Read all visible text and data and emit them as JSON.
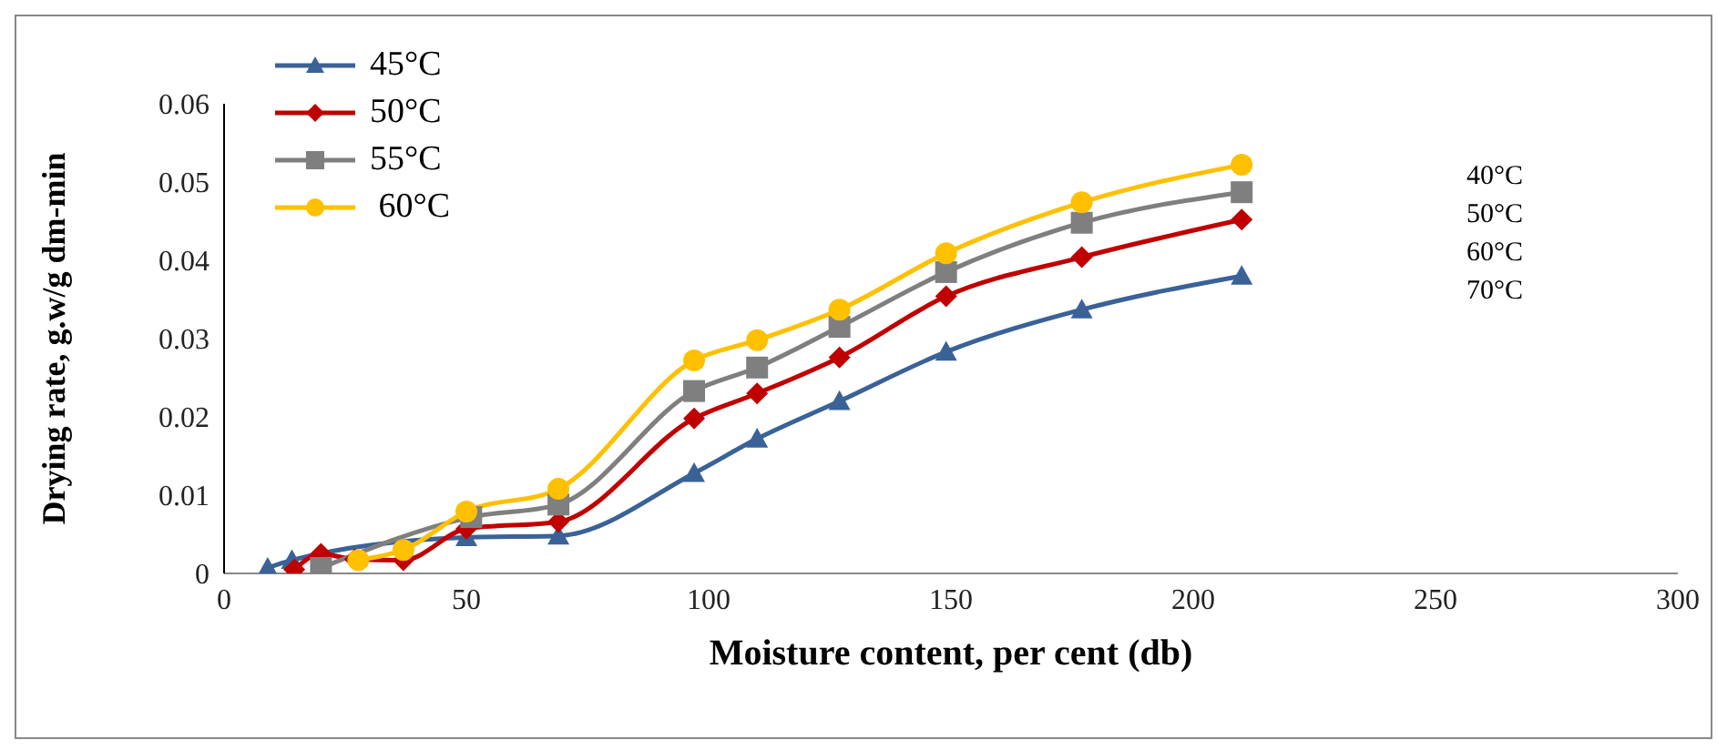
{
  "chart_data": {
    "type": "line",
    "xlabel": "Moisture content, per cent (db)",
    "ylabel": "Drying rate, g.w/g dm-min",
    "xlim": [
      0,
      300
    ],
    "xticks": [
      0,
      50,
      100,
      150,
      200,
      250,
      300
    ],
    "ylim": [
      0,
      0.06
    ],
    "yticks": [
      0,
      0.01,
      0.02,
      0.03,
      0.04,
      0.05,
      0.06
    ],
    "grid": false,
    "legend": "top left",
    "series": [
      {
        "name": "45°C",
        "color": "#3a6297",
        "marker": "triangle",
        "x": [
          9,
          14,
          50,
          69,
          97,
          110,
          127,
          149,
          177,
          210
        ],
        "values": [
          0.0007,
          0.0017,
          0.0046,
          0.0048,
          0.0128,
          0.0172,
          0.022,
          0.0283,
          0.0337,
          0.038
        ]
      },
      {
        "name": "50°C",
        "color": "#c00000",
        "marker": "diamond",
        "x": [
          14.5,
          20,
          27,
          37,
          50,
          69,
          97,
          110,
          127,
          149,
          177,
          210
        ],
        "values": [
          0.0005,
          0.0025,
          0.0018,
          0.0017,
          0.0057,
          0.0066,
          0.0198,
          0.023,
          0.0276,
          0.0354,
          0.0404,
          0.0452
        ]
      },
      {
        "name": "55°C",
        "color": "#7f7f7f",
        "marker": "square",
        "x": [
          20,
          27.7,
          37,
          51,
          69,
          97,
          110,
          127,
          149,
          177,
          210
        ],
        "values": [
          0.0007,
          null,
          null,
          0.0072,
          0.0088,
          0.0233,
          0.0263,
          0.0315,
          0.0385,
          0.0448,
          0.0487
        ]
      },
      {
        "name": " 60°C",
        "color": "#ffc000",
        "marker": "circle",
        "x": [
          27.7,
          37,
          50,
          69,
          97,
          110,
          127,
          149,
          177,
          210
        ],
        "values": [
          0.0017,
          0.003,
          0.0079,
          0.0108,
          0.0272,
          0.0298,
          0.0337,
          0.0409,
          0.0474,
          0.0522
        ]
      }
    ],
    "annotations": [
      "40°C",
      "50°C",
      "60°C",
      "70°C"
    ]
  }
}
